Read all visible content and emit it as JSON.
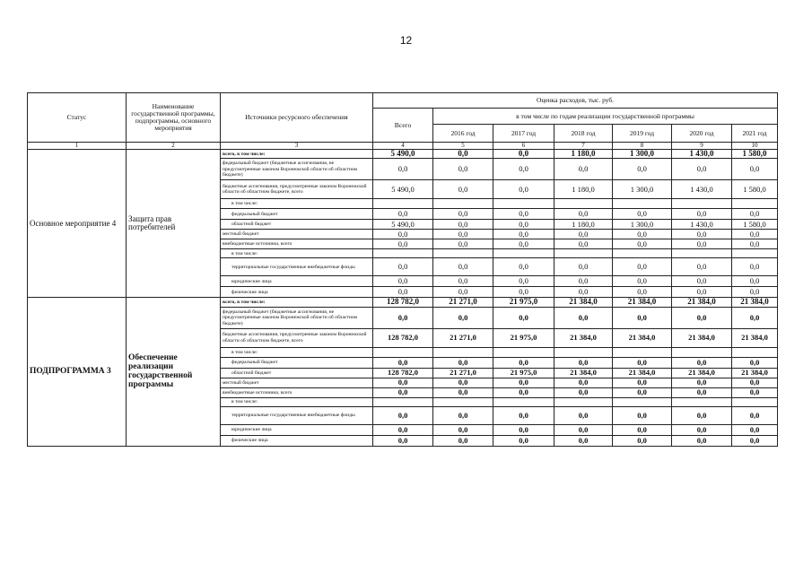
{
  "page_number": "12",
  "header": {
    "status": "Статус",
    "name": "Наименование государственной программы, подпрограммы, основного мероприятия",
    "sources": "Источники ресурсного обеспечения",
    "estimate": "Оценка расходов, тыс. руб.",
    "total": "Всего",
    "by_years": "в том числе по годам реализации государственной программы",
    "years": [
      "2016 год",
      "2017 год",
      "2018 год",
      "2019 год",
      "2020 год",
      "2021 год"
    ],
    "column_numbers": [
      "1",
      "2",
      "3",
      "4",
      "5",
      "6",
      "7",
      "8",
      "9",
      "10"
    ]
  },
  "blocks": [
    {
      "status": "Основное мероприятие 4",
      "name": "Защита прав потребителей",
      "bold": false,
      "rows": [
        {
          "source": "всего, в том числе:",
          "values": [
            "5 490,0",
            "0,0",
            "0,0",
            "1 180,0",
            "1 300,0",
            "1 430,0",
            "1 580,0"
          ]
        },
        {
          "source": "федеральный бюджет (бюджетные ассигнования, не предусмотренные законом Воронежской области об областном бюджете)",
          "values": [
            "0,0",
            "0,0",
            "0,0",
            "0,0",
            "0,0",
            "0,0",
            "0,0"
          ]
        },
        {
          "source": "бюджетные ассигнования, предусмотренные законом Воронежской области об областном бюджете, всего",
          "values": [
            "5 490,0",
            "0,0",
            "0,0",
            "1 180,0",
            "1 300,0",
            "1 430,0",
            "1 580,0"
          ]
        },
        {
          "source": "в том числе:",
          "values": [
            "",
            "",
            "",
            "",
            "",
            "",
            ""
          ]
        },
        {
          "source": "федеральный бюджет",
          "values": [
            "0,0",
            "0,0",
            "0,0",
            "0,0",
            "0,0",
            "0,0",
            "0,0"
          ]
        },
        {
          "source": "областной бюджет",
          "values": [
            "5 490,0",
            "0,0",
            "0,0",
            "1 180,0",
            "1 300,0",
            "1 430,0",
            "1 580,0"
          ]
        },
        {
          "source": "местный бюджет",
          "values": [
            "0,0",
            "0,0",
            "0,0",
            "0,0",
            "0,0",
            "0,0",
            "0,0"
          ]
        },
        {
          "source": "внебюджетные источники, всего",
          "values": [
            "0,0",
            "0,0",
            "0,0",
            "0,0",
            "0,0",
            "0,0",
            "0,0"
          ]
        },
        {
          "source": "в том числе:",
          "values": [
            "",
            "",
            "",
            "",
            "",
            "",
            ""
          ]
        },
        {
          "source": "территориальные государственные внебюджетные фонды",
          "values": [
            "0,0",
            "0,0",
            "0,0",
            "0,0",
            "0,0",
            "0,0",
            "0,0"
          ]
        },
        {
          "source": "юридические лица",
          "values": [
            "0,0",
            "0,0",
            "0,0",
            "0,0",
            "0,0",
            "0,0",
            "0,0"
          ]
        },
        {
          "source": "физические лица",
          "values": [
            "0,0",
            "0,0",
            "0,0",
            "0,0",
            "0,0",
            "0,0",
            "0,0"
          ]
        }
      ]
    },
    {
      "status": "ПОДПРОГРАММА 3",
      "name": "Обеспечение реализации государственной программы",
      "bold": true,
      "rows": [
        {
          "source": "всего, в том числе:",
          "values": [
            "128 782,0",
            "21 271,0",
            "21 975,0",
            "21 384,0",
            "21 384,0",
            "21 384,0",
            "21 384,0"
          ]
        },
        {
          "source": "федеральный бюджет (бюджетные ассигнования, не предусмотренные законом Воронежской области об областном бюджете)",
          "values": [
            "0,0",
            "0,0",
            "0,0",
            "0,0",
            "0,0",
            "0,0",
            "0,0"
          ]
        },
        {
          "source": "бюджетные ассигнования, предусмотренные законом Воронежской области об областном бюджете, всего",
          "values": [
            "128 782,0",
            "21 271,0",
            "21 975,0",
            "21 384,0",
            "21 384,0",
            "21 384,0",
            "21 384,0"
          ]
        },
        {
          "source": "в том числе:",
          "values": [
            "",
            "",
            "",
            "",
            "",
            "",
            ""
          ]
        },
        {
          "source": "федеральный бюджет",
          "values": [
            "0,0",
            "0,0",
            "0,0",
            "0,0",
            "0,0",
            "0,0",
            "0,0"
          ]
        },
        {
          "source": "областной бюджет",
          "values": [
            "128 782,0",
            "21 271,0",
            "21 975,0",
            "21 384,0",
            "21 384,0",
            "21 384,0",
            "21 384,0"
          ]
        },
        {
          "source": "местный бюджет",
          "values": [
            "0,0",
            "0,0",
            "0,0",
            "0,0",
            "0,0",
            "0,0",
            "0,0"
          ]
        },
        {
          "source": "внебюджетные источники, всего",
          "values": [
            "0,0",
            "0,0",
            "0,0",
            "0,0",
            "0,0",
            "0,0",
            "0,0"
          ]
        },
        {
          "source": "в том числе:",
          "values": [
            "",
            "",
            "",
            "",
            "",
            "",
            ""
          ]
        },
        {
          "source": "территориальные государственные внебюджетные фонды",
          "values": [
            "0,0",
            "0,0",
            "0,0",
            "0,0",
            "0,0",
            "0,0",
            "0,0"
          ]
        },
        {
          "source": "юридические лица",
          "values": [
            "0,0",
            "0,0",
            "0,0",
            "0,0",
            "0,0",
            "0,0",
            "0,0"
          ]
        },
        {
          "source": "физические лица",
          "values": [
            "0,0",
            "0,0",
            "0,0",
            "0,0",
            "0,0",
            "0,0",
            "0,0"
          ]
        }
      ]
    }
  ]
}
